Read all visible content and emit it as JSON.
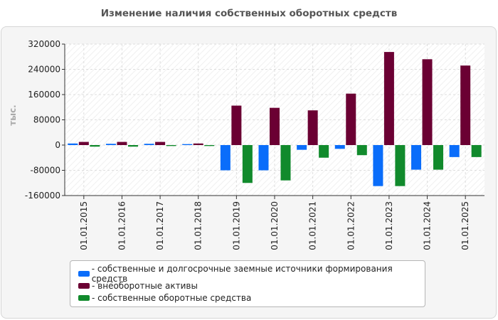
{
  "chart_data": {
    "type": "bar",
    "title": "Изменение наличия собственных оборотных средств",
    "ylabel": "тыс.",
    "xlabel": "",
    "ylim": [
      -160000,
      320000
    ],
    "yticks": [
      320000,
      240000,
      160000,
      80000,
      0,
      -80000,
      -160000
    ],
    "ytick_labels": [
      "320000",
      "240000",
      "160000",
      "80000",
      "0",
      "-80000",
      "-160000"
    ],
    "grid": true,
    "categories": [
      "01.01.2015",
      "01.01.2016",
      "01.01.2017",
      "01.01.2018",
      "01.01.2019",
      "01.01.2020",
      "01.01.2021",
      "01.01.2022",
      "01.01.2023",
      "01.01.2024",
      "01.01.2025"
    ],
    "series": [
      {
        "name": "- собственные и долгосрочные заемные источники формирования средств",
        "color": "#0a6dfa",
        "values": [
          5000,
          4000,
          4000,
          3000,
          -80000,
          -80000,
          -15000,
          -12000,
          -130000,
          -78000,
          -38000
        ]
      },
      {
        "name": "- внеоборотные активы",
        "color": "#6b0033",
        "values": [
          10000,
          10000,
          10000,
          5000,
          125000,
          118000,
          110000,
          163000,
          295000,
          272000,
          252000
        ]
      },
      {
        "name": "- собственные оборотные средства",
        "color": "#118a2c",
        "values": [
          -5000,
          -5000,
          -3000,
          -3000,
          -120000,
          -112000,
          -40000,
          -32000,
          -130000,
          -78000,
          -38000
        ]
      }
    ]
  }
}
